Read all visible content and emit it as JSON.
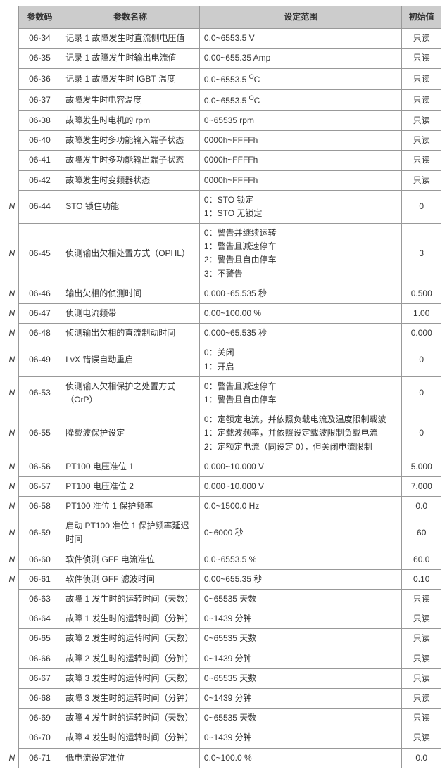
{
  "columns": {
    "code": "参数码",
    "name": "参数名称",
    "range": "设定范围",
    "init": "初始值"
  },
  "readonly_text": "只读",
  "rows": [
    {
      "marker": "",
      "code": "06-34",
      "name": "记录 1 故障发生时直流侧电压值",
      "range_html": "0.0~6553.5 V",
      "init": "只读"
    },
    {
      "marker": "",
      "code": "06-35",
      "name": "记录 1 故障发生时输出电流值",
      "range_html": "0.00~655.35 Amp",
      "init": "只读"
    },
    {
      "marker": "",
      "code": "06-36",
      "name": "记录 1 故障发生时 IGBT 温度",
      "range_html": "0.0~6553.5 <span class='sup'>O</span>C",
      "init": "只读"
    },
    {
      "marker": "",
      "code": "06-37",
      "name": "故障发生时电容温度",
      "range_html": "0.0~6553.5 <span class='sup'>O</span>C",
      "init": "只读"
    },
    {
      "marker": "",
      "code": "06-38",
      "name": "故障发生时电机的 rpm",
      "range_html": "0~65535 rpm",
      "init": "只读"
    },
    {
      "marker": "",
      "code": "06-40",
      "name": "故障发生时多功能输入端子状态",
      "range_html": "0000h~FFFFh",
      "init": "只读"
    },
    {
      "marker": "",
      "code": "06-41",
      "name": "故障发生时多功能输出端子状态",
      "range_html": "0000h~FFFFh",
      "init": "只读"
    },
    {
      "marker": "",
      "code": "06-42",
      "name": "故障发生时变频器状态",
      "range_html": "0000h~FFFFh",
      "init": "只读"
    },
    {
      "marker": "N",
      "code": "06-44",
      "name": "STO 锁住功能",
      "range_html": "0：STO 锁定\n1：STO 无锁定",
      "init": "0"
    },
    {
      "marker": "N",
      "code": "06-45",
      "name": "侦测输出欠相处置方式（OPHL）",
      "range_html": "0：警告并继续运转\n1：警告且减速停车\n2：警告且自由停车\n3：不警告",
      "init": "3"
    },
    {
      "marker": "N",
      "code": "06-46",
      "name": "输出欠相的侦测时间",
      "range_html": "0.000~65.535 秒",
      "init": "0.500"
    },
    {
      "marker": "N",
      "code": "06-47",
      "name": "侦测电流频带",
      "range_html": "0.00~100.00 %",
      "init": "1.00"
    },
    {
      "marker": "N",
      "code": "06-48",
      "name": "侦测输出欠相的直流制动时间",
      "range_html": "0.000~65.535 秒",
      "init": "0.000"
    },
    {
      "marker": "N",
      "code": "06-49",
      "name": "LvX 错误自动重启",
      "range_html": "0：关闭\n1：开启",
      "init": "0"
    },
    {
      "marker": "N",
      "code": "06-53",
      "name": "侦测输入欠相保护之处置方式（OrP）",
      "range_html": "0：警告且减速停车\n1：警告且自由停车",
      "init": "0"
    },
    {
      "marker": "N",
      "code": "06-55",
      "name": "降载波保护设定",
      "range_html": "0：定额定电流，并依照负载电流及温度限制载波\n1：定载波频率，并依照设定载波限制负载电流\n2：定额定电流（同设定 0），但关闭电流限制",
      "init": "0"
    },
    {
      "marker": "N",
      "code": "06-56",
      "name": "PT100 电压准位 1",
      "range_html": "0.000~10.000 V",
      "init": "5.000"
    },
    {
      "marker": "N",
      "code": "06-57",
      "name": "PT100 电压准位 2",
      "range_html": "0.000~10.000 V",
      "init": "7.000"
    },
    {
      "marker": "N",
      "code": "06-58",
      "name": "PT100 准位 1 保护频率",
      "range_html": "0.0~1500.0 Hz",
      "init": "0.0"
    },
    {
      "marker": "N",
      "code": "06-59",
      "name": "启动 PT100 准位 1 保护频率延迟时间",
      "range_html": "0~6000 秒",
      "init": "60"
    },
    {
      "marker": "N",
      "code": "06-60",
      "name": "软件侦测 GFF 电流准位",
      "range_html": "0.0~6553.5 %",
      "init": "60.0"
    },
    {
      "marker": "N",
      "code": "06-61",
      "name": "软件侦测 GFF 滤波时间",
      "range_html": "0.00~655.35 秒",
      "init": "0.10"
    },
    {
      "marker": "",
      "code": "06-63",
      "name": "故障 1 发生时的运转时间（天数）",
      "range_html": "0~65535 天数",
      "init": "只读"
    },
    {
      "marker": "",
      "code": "06-64",
      "name": "故障 1 发生时的运转时间（分钟）",
      "range_html": "0~1439 分钟",
      "init": "只读"
    },
    {
      "marker": "",
      "code": "06-65",
      "name": "故障 2 发生时的运转时间（天数）",
      "range_html": "0~65535 天数",
      "init": "只读"
    },
    {
      "marker": "",
      "code": "06-66",
      "name": "故障 2 发生时的运转时间（分钟）",
      "range_html": "0~1439 分钟",
      "init": "只读"
    },
    {
      "marker": "",
      "code": "06-67",
      "name": "故障 3 发生时的运转时间（天数）",
      "range_html": "0~65535 天数",
      "init": "只读"
    },
    {
      "marker": "",
      "code": "06-68",
      "name": "故障 3 发生时的运转时间（分钟）",
      "range_html": "0~1439 分钟",
      "init": "只读"
    },
    {
      "marker": "",
      "code": "06-69",
      "name": "故障 4 发生时的运转时间（天数）",
      "range_html": "0~65535 天数",
      "init": "只读"
    },
    {
      "marker": "",
      "code": "06-70",
      "name": "故障 4 发生时的运转时间（分钟）",
      "range_html": "0~1439 分钟",
      "init": "只读"
    },
    {
      "marker": "N",
      "code": "06-71",
      "name": "低电流设定准位",
      "range_html": "0.0~100.0 %",
      "init": "0.0"
    }
  ]
}
